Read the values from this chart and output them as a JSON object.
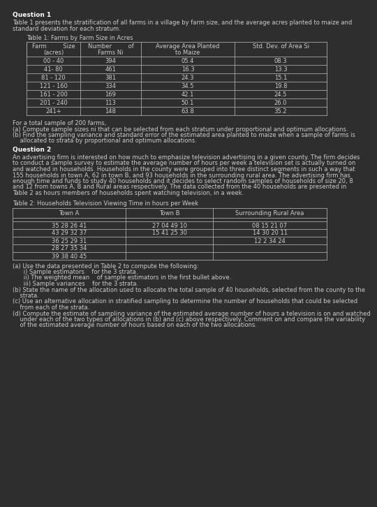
{
  "bg_color": "#2e2e2e",
  "text_color": "#cccccc",
  "title_color": "#ffffff",
  "line_color": "#aaaaaa",
  "font_size": 6.0,
  "bold_font_size": 6.5,
  "question1_title": "Question 1",
  "question1_intro1": "Table 1 presents the stratification of all farms in a village by farm size, and the average acres planted to maize and",
  "question1_intro2": "standard deviation for each stratum.",
  "table1_title": "Table 1: Farms by Farm Size in Acres",
  "table1_col_headers_line1": [
    "Farm         Size",
    "Number         of",
    "Average Area Planted",
    "Std. Dev. of Area Si"
  ],
  "table1_col_headers_line2": [
    "(acres)",
    "Farms Ni",
    "to Maize",
    ""
  ],
  "table1_rows": [
    [
      "00 - 40",
      "394",
      "05.4",
      "08.3"
    ],
    [
      "41- 80",
      "461",
      "16.3",
      "13.3"
    ],
    [
      "81 - 120",
      "381",
      "24.3",
      "15.1"
    ],
    [
      "121 - 160",
      "334",
      "34.5",
      "19.8"
    ],
    [
      "161 - 200",
      "169",
      "42.1",
      "24.5"
    ],
    [
      "201 - 240",
      "113",
      "50.1",
      "26.0"
    ],
    [
      "241+",
      "148",
      "63.8",
      "35.2"
    ]
  ],
  "q1_below1": "For a total sample of 200 farms,",
  "q1_below2": "(a) Compute sample sizes ni that can be selected from each stratum under proportional and optimum allocations.",
  "q1_below3a": "(b) Find the sampling variance and standard error of the estimated area planted to maize when a sample of farms is",
  "q1_below3b": "    allocated to strata by proportional and optimum allocations.",
  "question2_title": "Question 2",
  "q2_intro": [
    "An advertising firm is interested on how much to emphasize television advertising in a given county. The firm decides",
    "to conduct a sample survey to estimate the average number of hours per week a television set is actually turned on",
    "and watched in households. Households in the county were grouped into three distinct segments in such a way that",
    "155 households in town A, 62 in town B, and 93 households in the surrounding rural area. The advertising firm has",
    "enough time and funds to study 40 households and it decides to select random samples of households of size 20, 8",
    "and 12 from towns A, B and Rural areas respectively. The data collected from the 40 households are presented in",
    "Table 2 as hours members of households spent watching television, in a week."
  ],
  "table2_title": "Table 2: Households Television Viewing Time in hours per Week",
  "table2_headers": [
    "Town A",
    "Town B",
    "Surrounding Rural Area"
  ],
  "table2_rows": [
    [
      "35 28 26 41",
      "27 04 49 10",
      "08 15 21 07"
    ],
    [
      "43 29 32 37",
      "15 41 25 30",
      "14 30 20 11"
    ],
    [
      "36 25 29 31",
      "",
      "12 2 34 24"
    ],
    [
      "28 27 35 34",
      "",
      ""
    ],
    [
      "39 38 40 45",
      "",
      ""
    ]
  ],
  "q2_sub": [
    "(a) Use the data presented in Table 2 to compute the following:",
    "      i) Sample estimators    for the 3 strata.",
    "      ii) The weighted mean    of sample estimators in the first bullet above.",
    "      iii) Sample variances    for the 3 strata.",
    "(b) State the name of the allocation used to allocate the total sample of 40 households, selected from the county to the",
    "    strata.",
    "(c) Use an alternative allocation in stratified sampling to determine the number of households that could be selected",
    "    from each of the strata.",
    "(d) Compute the estimate of sampling variance of the estimated average number of hours a television is on and watched",
    "    under each of the two types of allocations in (b) and (c) above respectively. Comment on and compare the variability",
    "    of the estimated average number of hours based on each of the two allocations."
  ]
}
